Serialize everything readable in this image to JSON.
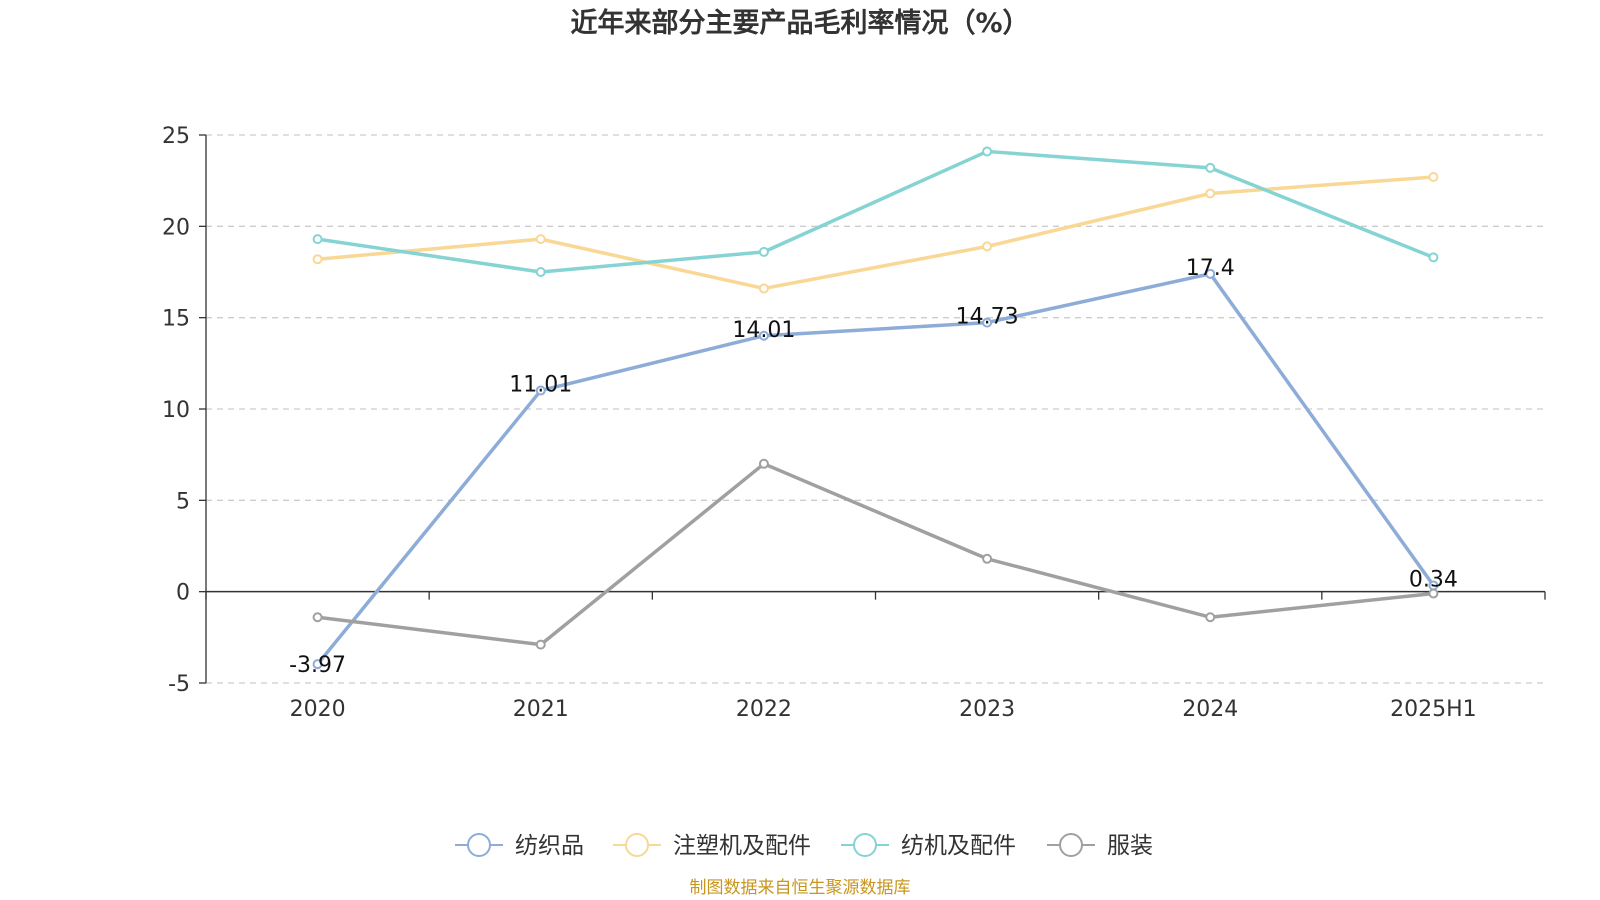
{
  "chart_data": {
    "type": "line",
    "title": "近年来部分主要产品毛利率情况（%）",
    "categories": [
      "2020",
      "2021",
      "2022",
      "2023",
      "2024",
      "2025H1"
    ],
    "ylim": [
      -5,
      25
    ],
    "yticks": [
      -5,
      0,
      5,
      10,
      15,
      20,
      25
    ],
    "grid": true,
    "legend_position": "bottom",
    "series": [
      {
        "name": "纺织品",
        "color": "#8eacd8",
        "values": [
          -3.97,
          11.01,
          14.01,
          14.73,
          17.4,
          0.34
        ],
        "labels": [
          "-3.97",
          "11.01",
          "14.01",
          "14.73",
          "17.4",
          "0.34"
        ]
      },
      {
        "name": "注塑机及配件",
        "color": "#f9d794",
        "values": [
          18.2,
          19.3,
          16.6,
          18.9,
          21.8,
          22.7
        ]
      },
      {
        "name": "纺机及配件",
        "color": "#86d3d3",
        "values": [
          19.3,
          17.5,
          18.6,
          24.1,
          23.2,
          18.3
        ]
      },
      {
        "name": "服装",
        "color": "#a0a0a0",
        "values": [
          -1.4,
          -2.9,
          7.0,
          1.8,
          -1.4,
          -0.1
        ]
      }
    ],
    "source": "制图数据来自恒生聚源数据库"
  }
}
